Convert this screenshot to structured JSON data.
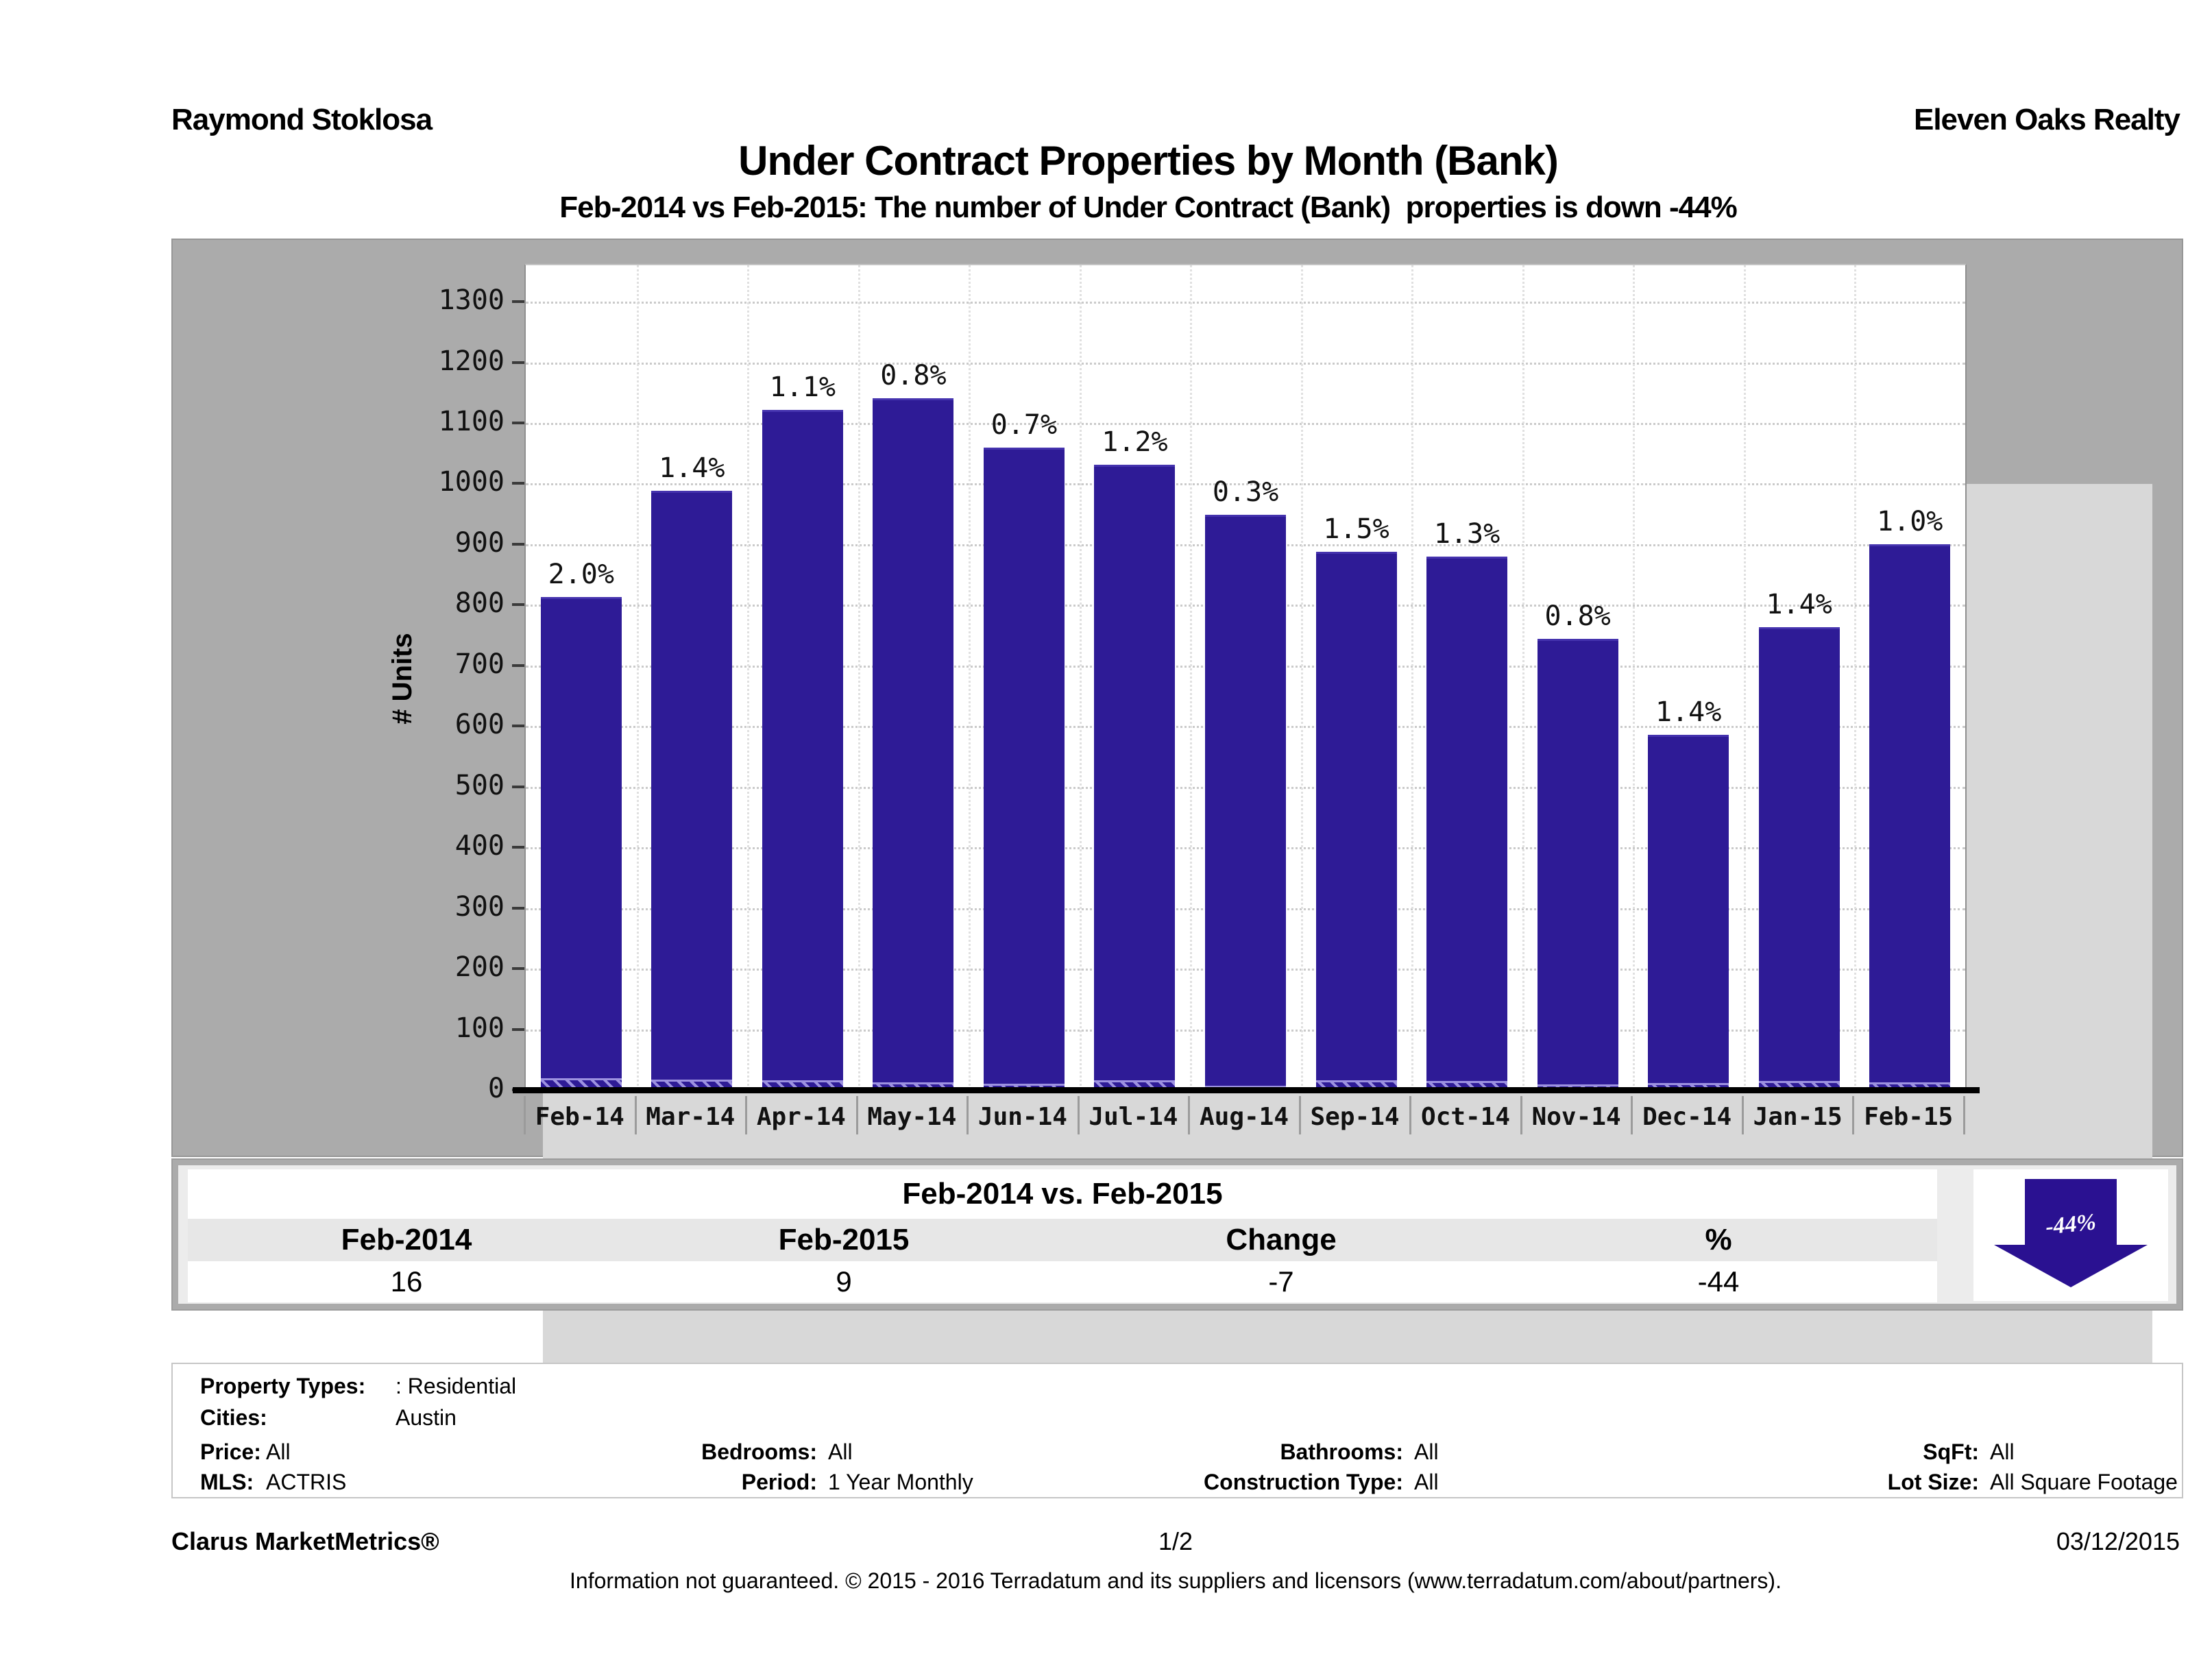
{
  "header": {
    "agent": "Raymond Stoklosa",
    "company": "Eleven Oaks Realty",
    "title": "Under Contract Properties by Month (Bank)",
    "subtitle": "Feb-2014 vs Feb-2015: The number of Under Contract (Bank)  properties is down -44%"
  },
  "chart_data": {
    "type": "bar",
    "title": "Under Contract Properties by Month (Bank)",
    "subtitle": "Feb-2014 vs Feb-2015: The number of Under Contract (Bank)  properties is down -44%",
    "xlabel": "",
    "ylabel": "# Units",
    "ylim": [
      0,
      1360
    ],
    "ytick_interval": 100,
    "ytick_max_label": 1300,
    "grid": "dotted horizontal gridlines every 100 units, faint dotted vertical slot lines",
    "legend": "none",
    "categories": [
      "Feb-14",
      "Mar-14",
      "Apr-14",
      "May-14",
      "Jun-14",
      "Jul-14",
      "Aug-14",
      "Sep-14",
      "Oct-14",
      "Nov-14",
      "Dec-14",
      "Jan-15",
      "Feb-15"
    ],
    "series": [
      {
        "name": "total_under_contract_units_estimated",
        "values": [
          810,
          985,
          1118,
          1137,
          1056,
          1028,
          945,
          884,
          876,
          740,
          582,
          760,
          896
        ]
      },
      {
        "name": "bank_under_contract_units_hatched_estimated",
        "values": [
          16,
          14,
          12,
          9,
          7,
          12,
          3,
          13,
          11,
          6,
          8,
          11,
          9
        ]
      }
    ],
    "bar_percent_labels": [
      "2.0%",
      "1.4%",
      "1.1%",
      "0.8%",
      "0.7%",
      "1.2%",
      "0.3%",
      "1.5%",
      "1.3%",
      "0.8%",
      "1.4%",
      "1.4%",
      "1.0%"
    ],
    "colors": {
      "bar": "#2E1B96",
      "bar_top_edge": "#4533AE",
      "hatch_stripe": "#9D92E0",
      "frame": "#ABABAB",
      "panel": "#D8D8D8",
      "plot_bg": "#FFFFFF",
      "axis": "#000000",
      "gridline": "#CACACA",
      "arrow": "#2A1191"
    }
  },
  "comparison_table": {
    "title": "Feb-2014 vs. Feb-2015",
    "headers": [
      "Feb-2014",
      "Feb-2015",
      "Change",
      "%"
    ],
    "values": [
      "16",
      "9",
      "-7",
      "-44"
    ],
    "arrow_label": "-44%"
  },
  "filters": {
    "property_types": {
      "label": "Property Types:",
      "value": ": Residential"
    },
    "cities": {
      "label": "Cities:",
      "value": "Austin"
    },
    "price": {
      "label": "Price:",
      "value": "All"
    },
    "mls": {
      "label": "MLS:",
      "value": "ACTRIS"
    },
    "bedrooms": {
      "label": "Bedrooms:",
      "value": "All"
    },
    "period": {
      "label": "Period:",
      "value": "1 Year Monthly"
    },
    "bathrooms": {
      "label": "Bathrooms:",
      "value": "All"
    },
    "construction_type": {
      "label": "Construction Type:",
      "value": "All"
    },
    "sqft": {
      "label": "SqFt:",
      "value": "All"
    },
    "lot_size": {
      "label": "Lot Size:",
      "value": "All Square Footage"
    }
  },
  "footer": {
    "brand": "Clarus MarketMetrics®",
    "page": "1/2",
    "date": "03/12/2015",
    "disclaimer": "Information not guaranteed. © 2015 - 2016 Terradatum and its suppliers and licensors (www.terradatum.com/about/partners)."
  }
}
